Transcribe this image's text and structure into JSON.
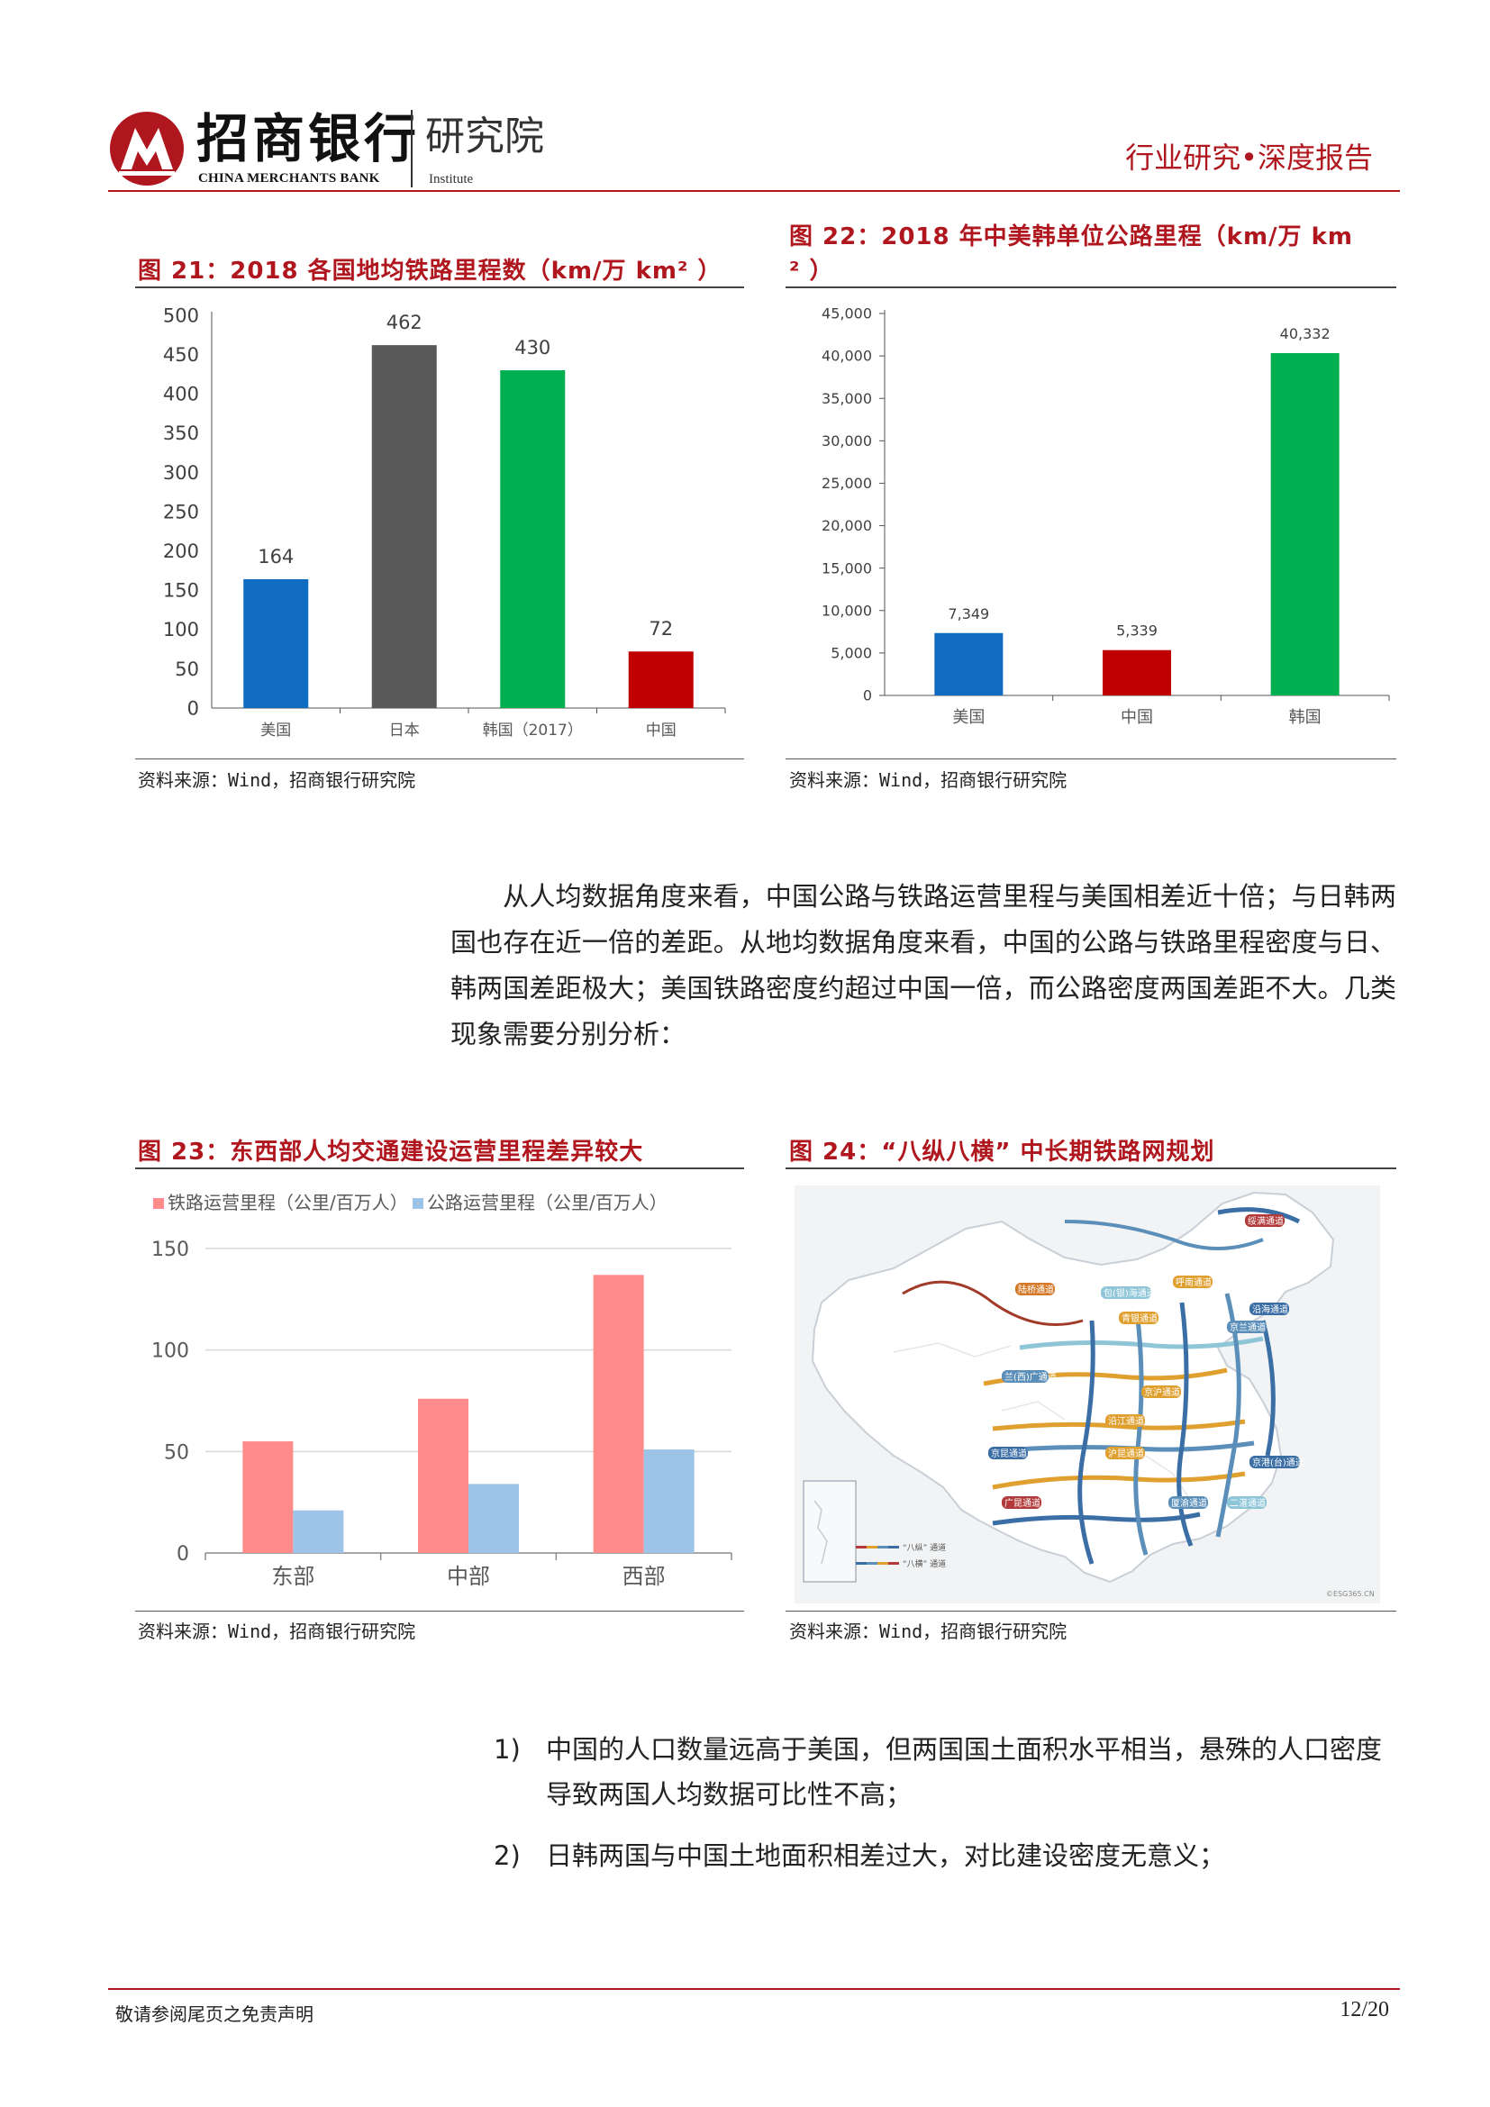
{
  "header": {
    "brand_cn": "招商银行",
    "brand_en": "CHINA MERCHANTS BANK",
    "institute_cn": "研究院",
    "institute_en": "Institute",
    "report_type": "行业研究•深度报告"
  },
  "figures": {
    "fig21": {
      "title": "图 21：2018 各国地均铁路里程数（km/万 km²  ）",
      "source": "资料来源：Wind，招商银行研究院"
    },
    "fig22": {
      "title_line1": "图 22：2018 年中美韩单位公路里程（km/万  km",
      "title_line2": "²  ）",
      "source": "资料来源：Wind，招商银行研究院"
    },
    "fig23": {
      "title": "图 23：东西部人均交通建设运营里程差异较大",
      "source": "资料来源：Wind，招商银行研究院"
    },
    "fig24": {
      "title": "图 24：“八纵八横” 中长期铁路网规划",
      "source": "资料来源：Wind，招商银行研究院",
      "map_labels": [
        "绥满通道",
        "京兰通道",
        "包(银)海通道",
        "呼南通道",
        "沿海通道",
        "陆桥通道",
        "青银通道",
        "京沪通道",
        "兰(西)广通道",
        "沿江通道",
        "京港(台)通道",
        "沪昆通道",
        "京哈~京港澳通道",
        "厦渝通道",
        "广昆通道",
        "京昆通道",
        "二湛通道",
        "“八纵” 通道",
        "“八横” 通道",
        "©ESG365.CN"
      ]
    }
  },
  "chart_data": [
    {
      "type": "bar",
      "categories": [
        "美国",
        "日本",
        "韩国（2017）",
        "中国"
      ],
      "values": [
        164,
        462,
        430,
        72
      ],
      "colors": [
        "#0f6cc0",
        "#595959",
        "#00b050",
        "#c00000"
      ],
      "ylim": [
        0,
        500
      ],
      "yticks": [
        "0",
        "50",
        "100",
        "150",
        "200",
        "250",
        "300",
        "350",
        "400",
        "450",
        "500"
      ],
      "data_labels": [
        "164",
        "462",
        "430",
        "72"
      ]
    },
    {
      "type": "bar",
      "categories": [
        "美国",
        "中国",
        "韩国"
      ],
      "values": [
        7349,
        5339,
        40332
      ],
      "colors": [
        "#0f6cc0",
        "#c00000",
        "#00b050"
      ],
      "ylim": [
        0,
        45000
      ],
      "yticks": [
        "0",
        "5,000",
        "10,000",
        "15,000",
        "20,000",
        "25,000",
        "30,000",
        "35,000",
        "40,000",
        "45,000"
      ],
      "data_labels": [
        "7,349",
        "5,339",
        "40,332"
      ]
    },
    {
      "type": "bar",
      "categories": [
        "东部",
        "中部",
        "西部"
      ],
      "series": [
        {
          "name": "铁路运营里程（公里/百万人）",
          "values": [
            55,
            76,
            137
          ],
          "color": "#ff8b8b"
        },
        {
          "name": "公路运营里程（公里/百万人）",
          "values": [
            21,
            34,
            51
          ],
          "color": "#9dc3e6"
        }
      ],
      "ylim": [
        0,
        150
      ],
      "yticks": [
        "0",
        "50",
        "100",
        "150"
      ],
      "grid": true,
      "legend": "top-left"
    }
  ],
  "body": {
    "paragraph": "从人均数据角度来看，中国公路与铁路运营里程与美国相差近十倍；与日韩两国也存在近一倍的差距。从地均数据角度来看，中国的公路与铁路里程密度与日、韩两国差距极大；美国铁路密度约超过中国一倍，而公路密度两国差距不大。几类现象需要分别分析：",
    "list": [
      {
        "num": "1)",
        "text": "中国的人口数量远高于美国，但两国国土面积水平相当，悬殊的人口密度导致两国人均数据可比性不高；"
      },
      {
        "num": "2)",
        "text": "日韩两国与中国土地面积相差过大，对比建设密度无意义；"
      }
    ]
  },
  "footer": {
    "disclaimer": "敬请参阅尾页之免责声明",
    "page": "12/20"
  },
  "colors": {
    "brand_red": "#b0161d"
  }
}
